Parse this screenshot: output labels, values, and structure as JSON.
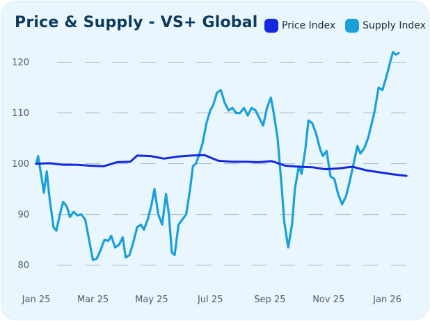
{
  "chart_data": {
    "type": "line",
    "title": "Price & Supply - VS+ Global",
    "xlabel": "",
    "ylabel": "",
    "ylim": [
      77,
      123
    ],
    "yticks": [
      80,
      90,
      100,
      110,
      120
    ],
    "grid": "horizontal dashed",
    "legend_position": "top-right",
    "xlim": [
      "2025-01-01",
      "2026-01-31"
    ],
    "xticks": [
      {
        "date": "2025-01-01",
        "label": "Jan 25"
      },
      {
        "date": "2025-03-01",
        "label": "Mar 25"
      },
      {
        "date": "2025-05-01",
        "label": "May 25"
      },
      {
        "date": "2025-07-01",
        "label": "Jul 25"
      },
      {
        "date": "2025-09-01",
        "label": "Sep 25"
      },
      {
        "date": "2025-11-01",
        "label": "Nov 25"
      },
      {
        "date": "2026-01-01",
        "label": "Jan 26"
      }
    ],
    "series": [
      {
        "name": "Price Index",
        "color": "#1428e0",
        "points": [
          [
            "2025-01-01",
            100.0
          ],
          [
            "2025-01-15",
            100.1
          ],
          [
            "2025-01-29",
            99.8
          ],
          [
            "2025-02-12",
            99.8
          ],
          [
            "2025-02-26",
            99.6
          ],
          [
            "2025-03-12",
            99.5
          ],
          [
            "2025-03-26",
            100.3
          ],
          [
            "2025-04-09",
            100.4
          ],
          [
            "2025-04-16",
            101.6
          ],
          [
            "2025-04-30",
            101.5
          ],
          [
            "2025-05-14",
            101.0
          ],
          [
            "2025-05-28",
            101.4
          ],
          [
            "2025-06-11",
            101.6
          ],
          [
            "2025-06-25",
            101.7
          ],
          [
            "2025-07-09",
            100.6
          ],
          [
            "2025-07-23",
            100.4
          ],
          [
            "2025-08-06",
            100.4
          ],
          [
            "2025-08-20",
            100.3
          ],
          [
            "2025-09-03",
            100.5
          ],
          [
            "2025-09-17",
            99.6
          ],
          [
            "2025-10-01",
            99.4
          ],
          [
            "2025-10-15",
            99.3
          ],
          [
            "2025-10-29",
            98.9
          ],
          [
            "2025-11-12",
            99.1
          ],
          [
            "2025-11-26",
            99.4
          ],
          [
            "2025-12-10",
            98.7
          ],
          [
            "2025-12-24",
            98.3
          ],
          [
            "2026-01-07",
            97.9
          ],
          [
            "2026-01-21",
            97.6
          ]
        ]
      },
      {
        "name": "Supply Index",
        "color": "#1aa0d8",
        "points": [
          [
            "2025-01-01",
            100.0
          ],
          [
            "2025-01-03",
            101.5
          ],
          [
            "2025-01-06",
            98.0
          ],
          [
            "2025-01-09",
            94.3
          ],
          [
            "2025-01-12",
            98.5
          ],
          [
            "2025-01-15",
            93.0
          ],
          [
            "2025-01-19",
            87.5
          ],
          [
            "2025-01-22",
            86.8
          ],
          [
            "2025-01-25",
            89.5
          ],
          [
            "2025-01-29",
            92.5
          ],
          [
            "2025-02-02",
            91.5
          ],
          [
            "2025-02-05",
            89.5
          ],
          [
            "2025-02-09",
            90.5
          ],
          [
            "2025-02-13",
            89.8
          ],
          [
            "2025-02-17",
            90.0
          ],
          [
            "2025-02-21",
            89.0
          ],
          [
            "2025-02-25",
            85.0
          ],
          [
            "2025-03-01",
            81.0
          ],
          [
            "2025-03-05",
            81.3
          ],
          [
            "2025-03-09",
            83.0
          ],
          [
            "2025-03-13",
            85.0
          ],
          [
            "2025-03-17",
            84.8
          ],
          [
            "2025-03-20",
            85.8
          ],
          [
            "2025-03-24",
            83.5
          ],
          [
            "2025-03-28",
            84.0
          ],
          [
            "2025-04-01",
            85.5
          ],
          [
            "2025-04-04",
            81.5
          ],
          [
            "2025-04-08",
            82.0
          ],
          [
            "2025-04-12",
            84.5
          ],
          [
            "2025-04-16",
            87.5
          ],
          [
            "2025-04-20",
            88.0
          ],
          [
            "2025-04-23",
            87.0
          ],
          [
            "2025-04-27",
            89.0
          ],
          [
            "2025-05-01",
            92.0
          ],
          [
            "2025-05-04",
            95.0
          ],
          [
            "2025-05-08",
            90.0
          ],
          [
            "2025-05-12",
            88.0
          ],
          [
            "2025-05-16",
            94.0
          ],
          [
            "2025-05-19",
            90.0
          ],
          [
            "2025-05-22",
            82.5
          ],
          [
            "2025-05-25",
            82.0
          ],
          [
            "2025-05-29",
            88.0
          ],
          [
            "2025-06-02",
            89.0
          ],
          [
            "2025-06-06",
            90.0
          ],
          [
            "2025-06-10",
            95.0
          ],
          [
            "2025-06-13",
            99.5
          ],
          [
            "2025-06-16",
            100.0
          ],
          [
            "2025-06-19",
            101.5
          ],
          [
            "2025-06-23",
            104.0
          ],
          [
            "2025-06-27",
            108.0
          ],
          [
            "2025-07-01",
            110.5
          ],
          [
            "2025-07-04",
            111.5
          ],
          [
            "2025-07-08",
            114.0
          ],
          [
            "2025-07-12",
            114.5
          ],
          [
            "2025-07-16",
            112.0
          ],
          [
            "2025-07-20",
            110.5
          ],
          [
            "2025-07-24",
            111.0
          ],
          [
            "2025-07-28",
            110.0
          ],
          [
            "2025-08-01",
            110.0
          ],
          [
            "2025-08-05",
            111.0
          ],
          [
            "2025-08-09",
            109.5
          ],
          [
            "2025-08-13",
            111.0
          ],
          [
            "2025-08-17",
            110.5
          ],
          [
            "2025-08-21",
            109.0
          ],
          [
            "2025-08-25",
            107.5
          ],
          [
            "2025-08-29",
            111.0
          ],
          [
            "2025-09-02",
            113.0
          ],
          [
            "2025-09-05",
            110.0
          ],
          [
            "2025-09-09",
            105.0
          ],
          [
            "2025-09-13",
            96.0
          ],
          [
            "2025-09-16",
            88.5
          ],
          [
            "2025-09-20",
            83.5
          ],
          [
            "2025-09-24",
            88.0
          ],
          [
            "2025-09-27",
            95.0
          ],
          [
            "2025-10-01",
            99.5
          ],
          [
            "2025-10-04",
            98.0
          ],
          [
            "2025-10-08",
            103.0
          ],
          [
            "2025-10-11",
            108.5
          ],
          [
            "2025-10-15",
            108.0
          ],
          [
            "2025-10-19",
            106.0
          ],
          [
            "2025-10-23",
            103.0
          ],
          [
            "2025-10-26",
            101.5
          ],
          [
            "2025-10-30",
            102.5
          ],
          [
            "2025-11-03",
            97.5
          ],
          [
            "2025-11-07",
            97.0
          ],
          [
            "2025-11-11",
            94.0
          ],
          [
            "2025-11-15",
            92.0
          ],
          [
            "2025-11-19",
            93.5
          ],
          [
            "2025-11-23",
            96.5
          ],
          [
            "2025-11-27",
            100.0
          ],
          [
            "2025-12-01",
            103.5
          ],
          [
            "2025-12-04",
            102.0
          ],
          [
            "2025-12-08",
            103.0
          ],
          [
            "2025-12-12",
            105.0
          ],
          [
            "2025-12-16",
            108.0
          ],
          [
            "2025-12-19",
            110.5
          ],
          [
            "2025-12-23",
            115.0
          ],
          [
            "2025-12-27",
            114.5
          ],
          [
            "2025-12-31",
            117.0
          ],
          [
            "2026-01-04",
            120.0
          ],
          [
            "2026-01-07",
            122.0
          ],
          [
            "2026-01-10",
            121.5
          ],
          [
            "2026-01-13",
            121.8
          ]
        ]
      }
    ]
  }
}
